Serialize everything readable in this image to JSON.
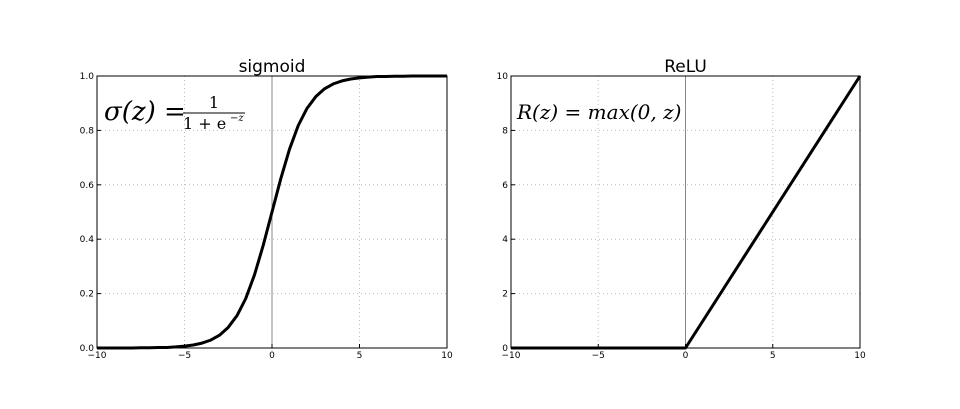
{
  "chart_data": [
    {
      "type": "line",
      "title": "sigmoid",
      "x": [
        -10,
        -9.5,
        -9,
        -8.5,
        -8,
        -7.5,
        -7,
        -6.5,
        -6,
        -5.5,
        -5,
        -4.5,
        -4,
        -3.5,
        -3,
        -2.5,
        -2,
        -1.5,
        -1,
        -0.5,
        0,
        0.5,
        1,
        1.5,
        2,
        2.5,
        3,
        3.5,
        4,
        4.5,
        5,
        5.5,
        6,
        6.5,
        7,
        7.5,
        8,
        8.5,
        9,
        9.5,
        10
      ],
      "series": [
        {
          "color": "#000000",
          "values": [
            0,
            0,
            0,
            0,
            0,
            0.001,
            0.001,
            0.002,
            0.002,
            0.004,
            0.007,
            0.011,
            0.018,
            0.029,
            0.047,
            0.076,
            0.119,
            0.182,
            0.269,
            0.378,
            0.5,
            0.622,
            0.731,
            0.818,
            0.881,
            0.924,
            0.953,
            0.971,
            0.982,
            0.989,
            0.993,
            0.996,
            0.998,
            0.998,
            0.999,
            0.999,
            1,
            1,
            1,
            1,
            1
          ]
        }
      ],
      "xlim": [
        -10,
        10
      ],
      "ylim": [
        0,
        1
      ],
      "xticks": [
        {
          "value": -10,
          "label": "−10"
        },
        {
          "value": -5,
          "label": "−5"
        },
        0,
        5,
        10
      ],
      "yticks": [
        {
          "value": 0,
          "label": "0.0"
        },
        0.2,
        0.4,
        0.6,
        0.8,
        {
          "value": 1,
          "label": "1.0"
        }
      ],
      "grid": true,
      "formula": {
        "lhs": "σ(z) =",
        "numerator": "1",
        "denominator": "1 + e",
        "exponent": "−z"
      }
    },
    {
      "type": "line",
      "title": "ReLU",
      "x": [
        -10,
        0,
        10
      ],
      "series": [
        {
          "color": "#000000",
          "values": [
            0,
            0,
            10
          ]
        }
      ],
      "xlim": [
        -10,
        10
      ],
      "ylim": [
        0,
        10
      ],
      "xticks": [
        {
          "value": -10,
          "label": "−10"
        },
        {
          "value": -5,
          "label": "−5"
        },
        0,
        5,
        10
      ],
      "yticks": [
        0,
        2,
        4,
        6,
        8,
        10
      ],
      "grid": true,
      "formula": {
        "lhs": "R(z) = max(0,  z)"
      }
    }
  ]
}
